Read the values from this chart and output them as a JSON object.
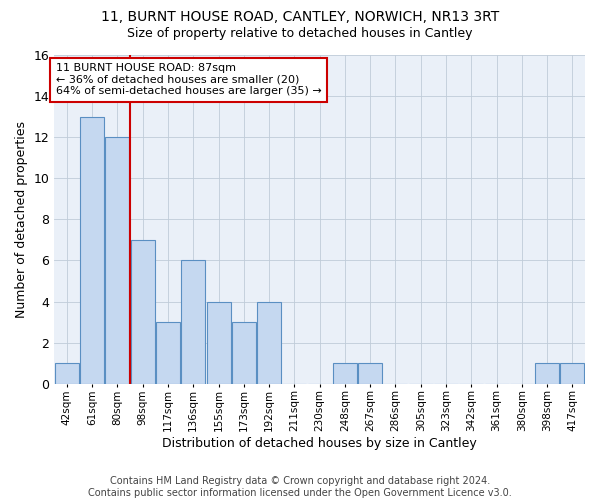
{
  "title1": "11, BURNT HOUSE ROAD, CANTLEY, NORWICH, NR13 3RT",
  "title2": "Size of property relative to detached houses in Cantley",
  "xlabel": "Distribution of detached houses by size in Cantley",
  "ylabel": "Number of detached properties",
  "footer1": "Contains HM Land Registry data © Crown copyright and database right 2024.",
  "footer2": "Contains public sector information licensed under the Open Government Licence v3.0.",
  "annotation_title": "11 BURNT HOUSE ROAD: 87sqm",
  "annotation_line1": "← 36% of detached houses are smaller (20)",
  "annotation_line2": "64% of semi-detached houses are larger (35) →",
  "bar_categories": [
    "42sqm",
    "61sqm",
    "80sqm",
    "98sqm",
    "117sqm",
    "136sqm",
    "155sqm",
    "173sqm",
    "192sqm",
    "211sqm",
    "230sqm",
    "248sqm",
    "267sqm",
    "286sqm",
    "305sqm",
    "323sqm",
    "342sqm",
    "361sqm",
    "380sqm",
    "398sqm",
    "417sqm"
  ],
  "bar_values": [
    1,
    13,
    12,
    7,
    3,
    6,
    4,
    3,
    4,
    0,
    0,
    1,
    1,
    0,
    0,
    0,
    0,
    0,
    0,
    1,
    1
  ],
  "bar_color": "#c5d8f0",
  "bar_edge_color": "#5a8fc2",
  "ref_line_color": "#cc0000",
  "ref_line_x": 2.5,
  "ylim": [
    0,
    16
  ],
  "yticks": [
    0,
    2,
    4,
    6,
    8,
    10,
    12,
    14,
    16
  ],
  "annotation_box_color": "#cc0000",
  "background_color": "#eaf0f8",
  "grid_color": "#c0ccd8",
  "title1_fontsize": 10,
  "title2_fontsize": 9,
  "footer_fontsize": 7
}
